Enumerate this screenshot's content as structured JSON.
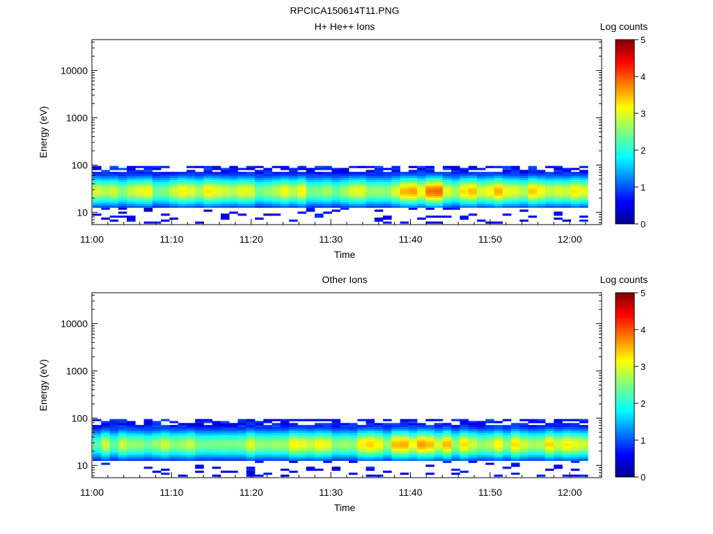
{
  "figure": {
    "title": "RPCICA150614T11.PNG"
  },
  "chart_data": [
    {
      "type": "heatmap",
      "title": "H+ He++ Ions",
      "xlabel": "Time",
      "ylabel": "Energy (eV)",
      "x_tick_labels": [
        "11:00",
        "11:10",
        "11:20",
        "11:30",
        "11:40",
        "11:50",
        "12:00"
      ],
      "x_range_minutes_after_1100": [
        0,
        64
      ],
      "y_tick_labels": [
        "10",
        "100",
        "1000",
        "10000"
      ],
      "y_scale": "log",
      "y_range": [
        5.5,
        45000
      ],
      "energy_band": [
        13,
        95
      ],
      "colorbar": {
        "label": "Log counts",
        "tick_labels": [
          "0",
          "1",
          "2",
          "3",
          "4",
          "5"
        ],
        "range": [
          0,
          5
        ],
        "colormap": "rainbow"
      },
      "intensity_profile": {
        "description_minutes": [
          0,
          10,
          20,
          30,
          36,
          40,
          42,
          46,
          50,
          55,
          60,
          62
        ],
        "peak_log_counts": [
          2.7,
          2.9,
          2.8,
          2.8,
          3.0,
          3.4,
          3.6,
          3.1,
          3.2,
          3.1,
          3.3,
          2.8
        ]
      }
    },
    {
      "type": "heatmap",
      "title": "Other Ions",
      "xlabel": "Time",
      "ylabel": "Energy (eV)",
      "x_tick_labels": [
        "11:00",
        "11:10",
        "11:20",
        "11:30",
        "11:40",
        "11:50",
        "12:00"
      ],
      "x_range_minutes_after_1100": [
        0,
        64
      ],
      "y_tick_labels": [
        "10",
        "100",
        "1000",
        "10000"
      ],
      "y_scale": "log",
      "y_range": [
        5.5,
        45000
      ],
      "energy_band": [
        13,
        95
      ],
      "colorbar": {
        "label": "Log counts",
        "tick_labels": [
          "0",
          "1",
          "2",
          "3",
          "4",
          "5"
        ],
        "range": [
          0,
          5
        ],
        "colormap": "rainbow"
      },
      "intensity_profile": {
        "description_minutes": [
          0,
          10,
          20,
          30,
          36,
          40,
          42,
          46,
          50,
          55,
          60,
          62
        ],
        "peak_log_counts": [
          2.6,
          2.7,
          2.7,
          2.8,
          3.0,
          3.3,
          3.5,
          3.0,
          3.1,
          3.0,
          3.2,
          2.7
        ]
      }
    }
  ]
}
